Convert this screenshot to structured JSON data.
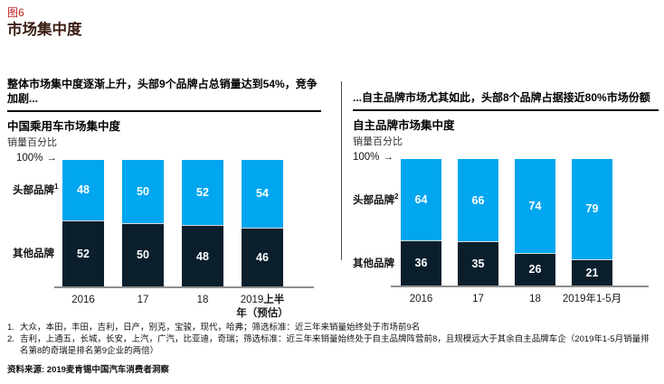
{
  "page": {
    "figure_label": "图6",
    "title": "市场集中度"
  },
  "panels": [
    {
      "headline": "整体市场集中度逐渐上升，头部9个品牌占总销量达到54%，竞争加剧..."
    },
    {
      "headline": "...自主品牌市场尤其如此，头部8个品牌占据接近80%市场份额"
    }
  ],
  "chart_data": [
    {
      "type": "bar",
      "stacked": true,
      "title": "中国乘用车市场集中度",
      "ylabel": "销量百分比",
      "y_axis_top_label": "100%",
      "ylim": [
        0,
        100
      ],
      "unit": "%",
      "grid": false,
      "categories": [
        [
          {
            "t": "2016"
          }
        ],
        [
          {
            "t": "17"
          }
        ],
        [
          {
            "t": "18"
          }
        ],
        [
          {
            "t": "2019"
          },
          {
            "t": "上半",
            "b": true
          },
          {
            "br": true
          },
          {
            "t": "年（预估）",
            "b": true
          }
        ]
      ],
      "series": [
        {
          "name": "头部品牌",
          "sup": "1",
          "color": "#00a6f0",
          "values": [
            48,
            50,
            52,
            54
          ]
        },
        {
          "name": "其他品牌",
          "sup": "",
          "color": "#0a1e2c",
          "values": [
            52,
            50,
            48,
            46
          ]
        }
      ]
    },
    {
      "type": "bar",
      "stacked": true,
      "title": "自主品牌市场集中度",
      "ylabel": "销量百分比",
      "y_axis_top_label": "100%",
      "ylim": [
        0,
        100
      ],
      "unit": "%",
      "grid": false,
      "categories": [
        [
          {
            "t": "2016"
          }
        ],
        [
          {
            "t": "17"
          }
        ],
        [
          {
            "t": "18"
          }
        ],
        [
          {
            "t": "2019年1-5月"
          }
        ]
      ],
      "series": [
        {
          "name": "头部品牌",
          "sup": "2",
          "color": "#00a6f0",
          "values": [
            64,
            66,
            74,
            79
          ]
        },
        {
          "name": "其他品牌",
          "sup": "",
          "color": "#0a1e2c",
          "values": [
            36,
            35,
            26,
            21
          ]
        }
      ]
    }
  ],
  "footnotes": [
    {
      "num": "1.",
      "text": "大众，本田，丰田，吉利，日产，别克，宝骏，现代，哈弗；筛选标准：近三年来销量始终处于市场前9名"
    },
    {
      "num": "2.",
      "text": "吉利，上通五，长城，长安，上汽，广汽，比亚迪，奇瑞；筛选标准：近三年来销量始终处于自主品牌阵营前8，且规模远大于其余自主品牌车企（2019年1-5月销量排名第8的奇瑞是排名第9企业的两倍）"
    }
  ],
  "source": "资料来源: 2019麦肯锡中国汽车消费者洞察",
  "colors": {
    "leader_segment": "#00a6f0",
    "other_segment": "#0a1e2c",
    "figure_label": "#c41f1f",
    "page_title": "#3b1e12",
    "axis": "#8f8f8f",
    "value_text": "#ffffff"
  }
}
